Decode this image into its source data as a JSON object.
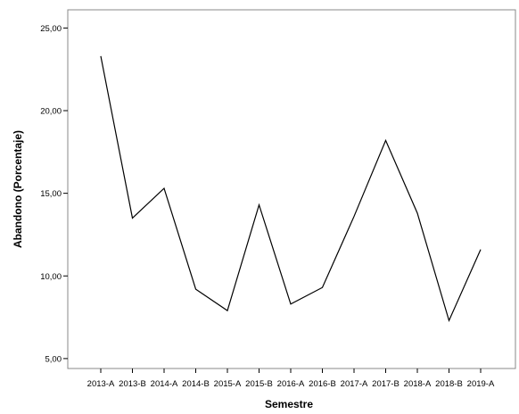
{
  "chart_data": {
    "type": "line",
    "xlabel": "Semestre",
    "ylabel": "Abandono (Porcentaje)",
    "categories": [
      "2013-A",
      "2013-B",
      "2014-A",
      "2014-B",
      "2015-A",
      "2015-B",
      "2016-A",
      "2016-B",
      "2017-A",
      "2017-B",
      "2018-A",
      "2018-B",
      "2019-A"
    ],
    "series": [
      {
        "values": [
          23.3,
          13.5,
          15.3,
          9.2,
          7.9,
          14.3,
          8.3,
          9.3,
          13.6,
          18.2,
          13.8,
          7.3,
          11.6
        ]
      }
    ],
    "ylim": [
      4.4,
      26.1
    ],
    "yticks": [
      5,
      10,
      15,
      20,
      25
    ],
    "ytick_labels": [
      "5,00",
      "10,00",
      "15,00",
      "20,00",
      "25,00"
    ],
    "grid": false,
    "line_color": "#000000"
  }
}
